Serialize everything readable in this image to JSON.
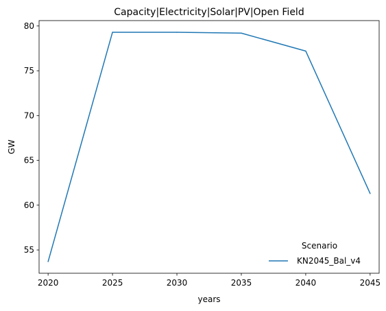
{
  "chart_data": {
    "type": "line",
    "title": "Capacity|Electricity|Solar|PV|Open Field",
    "xlabel": "years",
    "ylabel": "GW",
    "x": [
      2020,
      2025,
      2030,
      2035,
      2040,
      2045
    ],
    "series": [
      {
        "name": "KN2045_Bal_v4",
        "values": [
          53.7,
          79.3,
          79.3,
          79.2,
          77.2,
          61.3
        ],
        "color": "#1f77b4"
      }
    ],
    "xticks": [
      2020,
      2025,
      2030,
      2035,
      2040,
      2045
    ],
    "yticks": [
      55,
      60,
      65,
      70,
      75,
      80
    ],
    "xlim": [
      2019.3,
      2045.7
    ],
    "ylim": [
      52.4,
      80.6
    ],
    "grid": false,
    "legend": {
      "title": "Scenario",
      "placement": "lower-right"
    }
  }
}
